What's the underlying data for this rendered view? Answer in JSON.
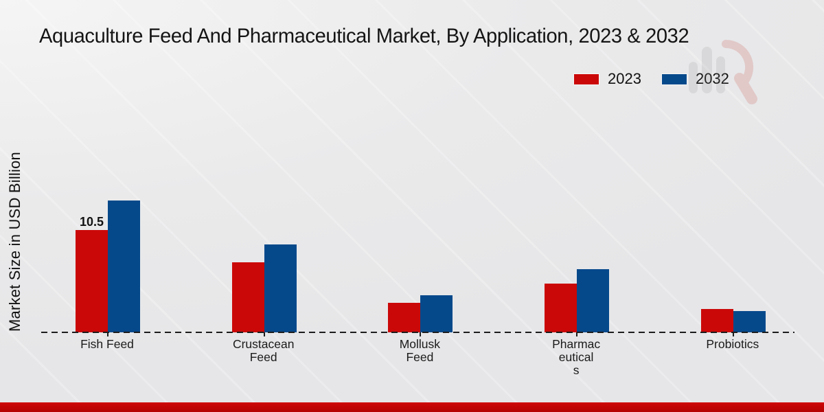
{
  "chart_data": {
    "type": "bar",
    "title": "Aquaculture Feed And Pharmaceutical Market, By Application, 2023 & 2032",
    "ylabel": "Market Size in USD Billion",
    "xlabel": "",
    "categories": [
      "Fish Feed",
      "Crustacean Feed",
      "Mollusk Feed",
      "Pharmaceuticals",
      "Probiotics"
    ],
    "category_label_lines": [
      [
        "Fish Feed"
      ],
      [
        "Crustacean",
        "Feed"
      ],
      [
        "Mollusk",
        "Feed"
      ],
      [
        "Pharmac",
        "eutical",
        "s"
      ],
      [
        "Probiotics"
      ]
    ],
    "series": [
      {
        "name": "2023",
        "color": "#cb0808",
        "values": [
          10.5,
          7.2,
          3.0,
          5.0,
          2.4
        ]
      },
      {
        "name": "2032",
        "color": "#06498b",
        "values": [
          13.5,
          9.0,
          3.8,
          6.5,
          2.2
        ]
      }
    ],
    "annotations": [
      {
        "series_index": 0,
        "category_index": 0,
        "text": "10.5"
      }
    ],
    "ylim": [
      0,
      14.5
    ],
    "grid": false,
    "legend_position": "top-right",
    "baseline_style": "dashed"
  },
  "colors": {
    "background": "#eaeaeb",
    "accent_strip": "#c40505",
    "text": "#141414"
  },
  "watermark": {
    "name": "market-research-logo-watermark"
  }
}
